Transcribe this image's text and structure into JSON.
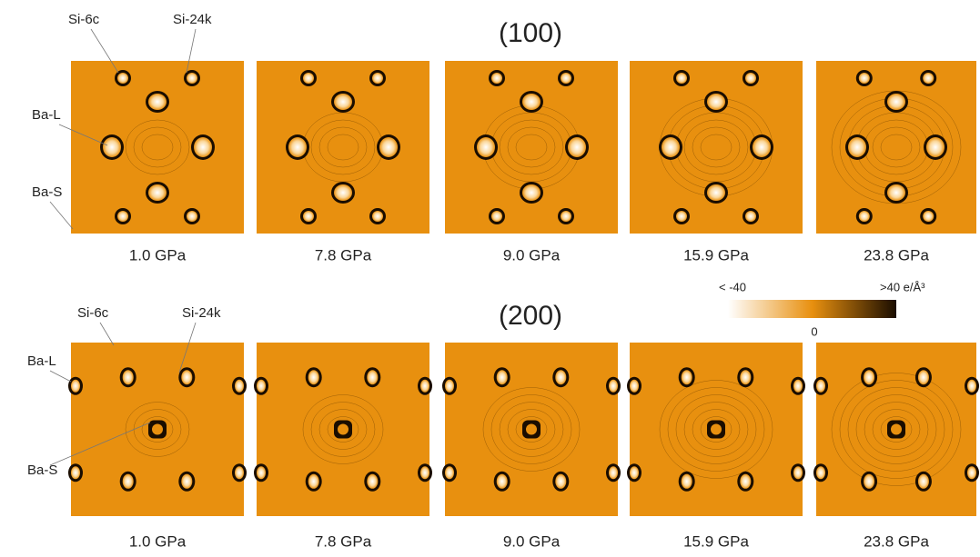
{
  "rows": [
    {
      "title": "(100)",
      "annotations": [
        "Si-6c",
        "Si-24k",
        "Ba-L",
        "Ba-S"
      ],
      "panels": [
        "1.0 GPa",
        "7.8 GPa",
        "9.0 GPa",
        "15.9 GPa",
        "23.8 GPa"
      ]
    },
    {
      "title": "(200)",
      "annotations": [
        "Si-6c",
        "Si-24k",
        "Ba-L",
        "Ba-S"
      ],
      "panels": [
        "1.0 GPa",
        "7.8 GPa",
        "9.0 GPa",
        "15.9 GPa",
        "23.8 GPa"
      ]
    }
  ],
  "colorbar": {
    "min_label": "< -40",
    "max_label": ">40 e/Å³",
    "mid_label": "0"
  }
}
